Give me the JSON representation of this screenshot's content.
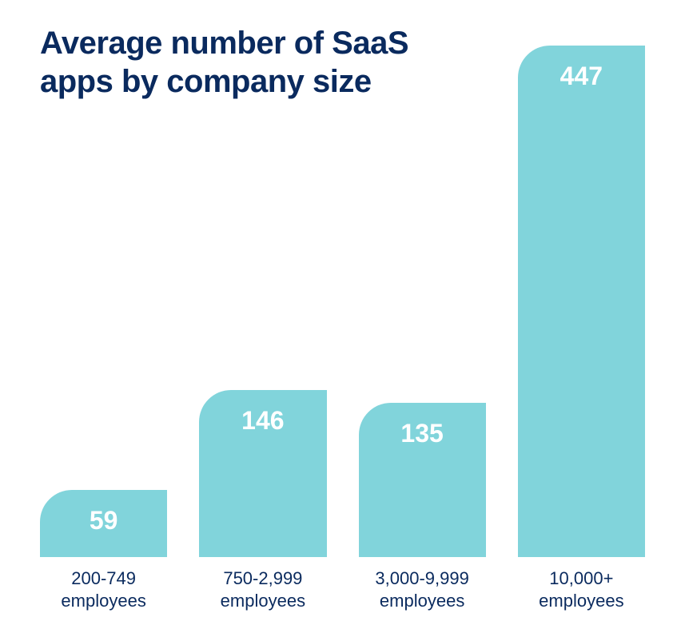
{
  "chart": {
    "type": "bar",
    "title": "Average number of SaaS apps by company size",
    "title_color": "#0a2a5e",
    "title_fontsize": 40,
    "title_fontweight": 800,
    "background_color": "#ffffff",
    "bar_fill_color": "#81d4db",
    "bar_border_top_left_radius": 40,
    "value_color": "#ffffff",
    "value_fontsize": 32,
    "value_fontweight": 700,
    "label_color": "#0a2a5e",
    "label_fontsize": 22,
    "max_value": 447,
    "chart_area_height": 640,
    "bars": [
      {
        "value": 59,
        "value_display": "59",
        "label_line1": "200-749",
        "label_line2": "employees"
      },
      {
        "value": 146,
        "value_display": "146",
        "label_line1": "750-2,999",
        "label_line2": "employees"
      },
      {
        "value": 135,
        "value_display": "135",
        "label_line1": "3,000-9,999",
        "label_line2": "employees"
      },
      {
        "value": 447,
        "value_display": "447",
        "label_line1": "10,000+",
        "label_line2": "employees"
      }
    ]
  }
}
